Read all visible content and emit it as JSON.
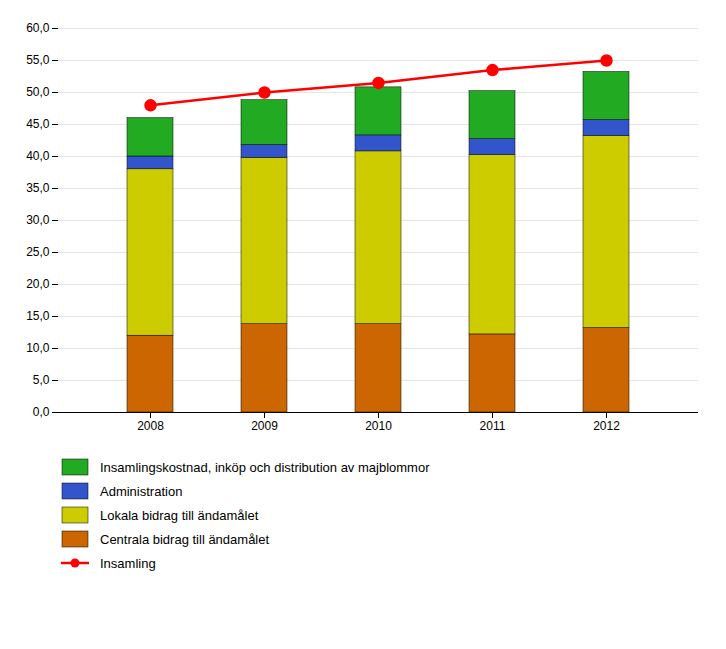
{
  "chart_data": {
    "type": "bar",
    "stacked": true,
    "categories": [
      "2008",
      "2009",
      "2010",
      "2011",
      "2012"
    ],
    "series": [
      {
        "name": "Centrala bidrag till ändamålet",
        "color": "#CC6600",
        "values": [
          12.0,
          13.8,
          13.8,
          12.2,
          13.2
        ]
      },
      {
        "name": "Lokala bidrag till ändamålet",
        "color": "#CCCC00",
        "values": [
          26.0,
          26.0,
          27.0,
          28.0,
          30.0
        ]
      },
      {
        "name": "Administration",
        "color": "#3355CC",
        "values": [
          2.0,
          2.0,
          2.5,
          2.5,
          2.5
        ]
      },
      {
        "name": "Insamlingskostnad, inköp och distribution av majblommor",
        "color": "#22AA22",
        "values": [
          6.0,
          7.0,
          7.5,
          7.5,
          7.5
        ]
      },
      {
        "name": "Insamling",
        "type": "line",
        "marker": "circle",
        "color": "#FF0000",
        "values": [
          48.0,
          50.0,
          51.5,
          53.5,
          55.0
        ]
      }
    ],
    "ylim": [
      0,
      60
    ],
    "yticks": [
      {
        "value": 0,
        "label": "0,0"
      },
      {
        "value": 5,
        "label": "5,0"
      },
      {
        "value": 10,
        "label": "10,0"
      },
      {
        "value": 15,
        "label": "15,0"
      },
      {
        "value": 20,
        "label": "20,0"
      },
      {
        "value": 25,
        "label": "25,0"
      },
      {
        "value": 30,
        "label": "30,0"
      },
      {
        "value": 35,
        "label": "35,0"
      },
      {
        "value": 40,
        "label": "40,0"
      },
      {
        "value": 45,
        "label": "45,0"
      },
      {
        "value": 50,
        "label": "50,0"
      },
      {
        "value": 55,
        "label": "55,0"
      },
      {
        "value": 60,
        "label": "60,0"
      }
    ],
    "grid": true,
    "legend": "bottom"
  }
}
